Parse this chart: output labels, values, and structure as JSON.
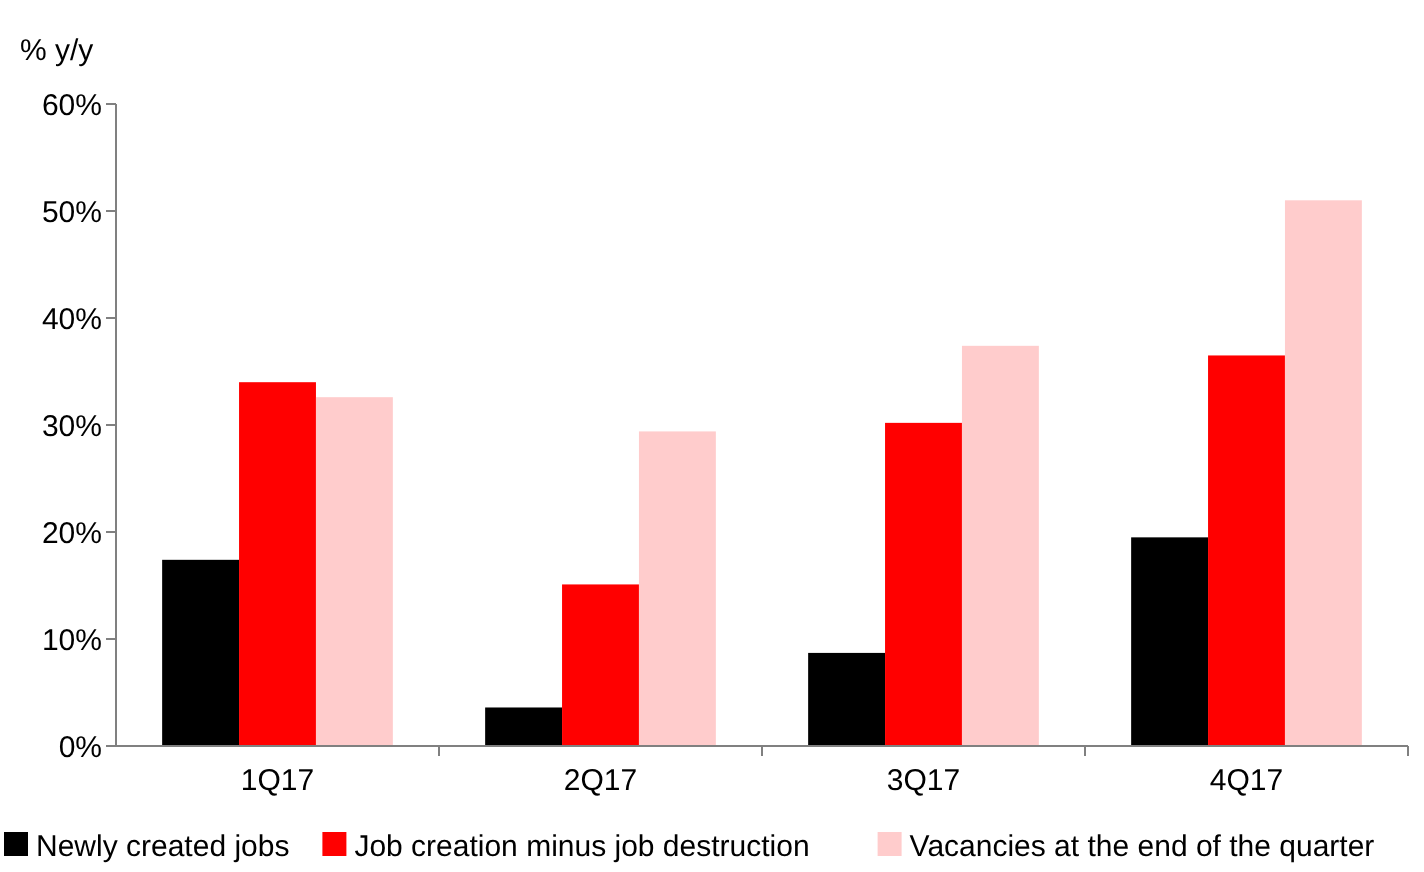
{
  "chart_data": {
    "type": "bar",
    "ylabel": "% y/y",
    "categories": [
      "1Q17",
      "2Q17",
      "3Q17",
      "4Q17"
    ],
    "series": [
      {
        "name": "Newly created jobs",
        "color": "#000000",
        "values": [
          17.4,
          3.6,
          8.7,
          19.5
        ]
      },
      {
        "name": "Job creation minus job destruction",
        "color": "#ff0000",
        "values": [
          34.0,
          15.1,
          30.2,
          36.5
        ]
      },
      {
        "name": "Vacancies at the end of the quarter",
        "color": "#ffcccc",
        "values": [
          32.6,
          29.4,
          37.4,
          51.0
        ]
      }
    ],
    "ylim": [
      0,
      60
    ],
    "yticks": [
      {
        "value": 0,
        "label": "0%"
      },
      {
        "value": 10,
        "label": "10%"
      },
      {
        "value": 20,
        "label": "20%"
      },
      {
        "value": 30,
        "label": "30%"
      },
      {
        "value": 40,
        "label": "40%"
      },
      {
        "value": 50,
        "label": "50%"
      },
      {
        "value": 60,
        "label": "60%"
      }
    ],
    "grid": false,
    "legend": "bottom"
  }
}
